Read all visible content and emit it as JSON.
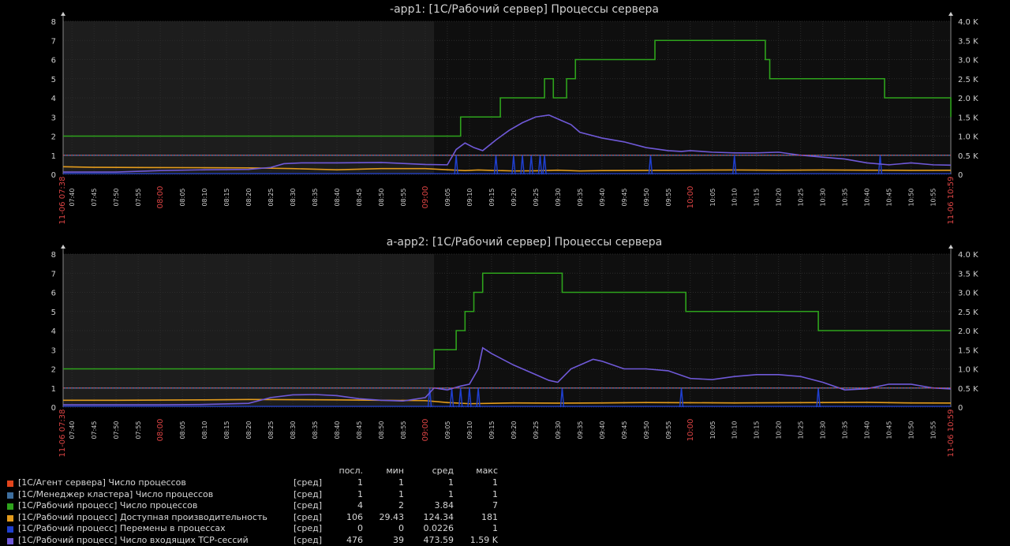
{
  "colors": {
    "bg": "#000000",
    "plot_bg": "#0f0f0f",
    "plot_dim": "#1d1d1d",
    "grid": "#2b2b2b",
    "text": "#cfcfcf",
    "red_text": "#d44",
    "trigger": "#d44"
  },
  "chart_data": [
    {
      "type": "line",
      "title": "-app1: [1С/Рабочий сервер] Процессы сервера",
      "x_start_label": "11-06 07:38",
      "x_end_label": "11-06 10:59",
      "x_ticks": [
        "07:40",
        "07:45",
        "07:50",
        "07:55",
        "08:00",
        "08:05",
        "08:10",
        "08:15",
        "08:20",
        "08:25",
        "08:30",
        "08:35",
        "08:40",
        "08:45",
        "08:50",
        "08:55",
        "09:00",
        "09:05",
        "09:10",
        "09:15",
        "09:20",
        "09:25",
        "09:30",
        "09:35",
        "09:40",
        "09:45",
        "09:50",
        "09:55",
        "10:00",
        "10:05",
        "10:10",
        "10:15",
        "10:20",
        "10:25",
        "10:30",
        "10:35",
        "10:40",
        "10:45",
        "10:50",
        "10:55"
      ],
      "x_ticks_red": [
        "08:00",
        "09:00",
        "10:00"
      ],
      "x_range_min": [
        458,
        659
      ],
      "dim_region_end_min": 542,
      "y_left": {
        "ticks": [
          "0",
          "1",
          "2",
          "3",
          "4",
          "5",
          "6",
          "7",
          "8"
        ],
        "ylim": [
          0,
          8
        ]
      },
      "y_right": {
        "ticks": [
          "0",
          "0.5 K",
          "1.0 K",
          "1.5 K",
          "2.0 K",
          "2.5 K",
          "3.0 K",
          "3.5 K",
          "4.0 K"
        ],
        "ylim": [
          0,
          4000
        ]
      },
      "trigger_line_left": 1,
      "series": [
        {
          "name": "[1С/Агент сервера] Число процессов",
          "color": "#e2441b",
          "axis": "left",
          "x": [
            458,
            659
          ],
          "y": [
            1,
            1
          ]
        },
        {
          "name": "[1С/Менеджер кластера] Число процессов",
          "color": "#3d6e9e",
          "axis": "left",
          "x": [
            458,
            659
          ],
          "y": [
            1,
            1
          ]
        },
        {
          "name": "[1С/Рабочий процесс] Число процессов",
          "color": "#2ea31c",
          "axis": "left",
          "step": true,
          "x": [
            458,
            547,
            548,
            556,
            557,
            558,
            559,
            563,
            564,
            566,
            567,
            568,
            569,
            570,
            572,
            573,
            574,
            591,
            592,
            617,
            618,
            643,
            644,
            659
          ],
          "y": [
            2,
            2,
            3,
            3,
            4,
            4,
            4,
            4,
            4,
            4,
            5,
            5,
            4,
            4,
            5,
            5,
            6,
            6,
            7,
            6,
            5,
            5,
            4,
            3
          ]
        },
        {
          "name": "[1С/Рабочий процесс] Доступная производительность",
          "color": "#e39b1c",
          "axis": "right",
          "x": [
            458,
            465,
            475,
            490,
            500,
            510,
            520,
            530,
            540,
            545,
            549,
            552,
            555,
            560,
            565,
            570,
            575,
            580,
            590,
            600,
            610,
            620,
            630,
            640,
            650,
            659
          ],
          "y": [
            200,
            185,
            180,
            175,
            170,
            150,
            120,
            150,
            150,
            120,
            100,
            115,
            105,
            90,
            95,
            110,
            90,
            100,
            105,
            110,
            115,
            110,
            115,
            110,
            105,
            106
          ]
        },
        {
          "name": "[1С/Рабочий процесс] Перемены в процессах",
          "color": "#1f3fcf",
          "axis": "left",
          "spikes": true,
          "x": [
            547,
            556,
            560,
            562,
            564,
            566,
            567,
            591,
            610,
            643
          ],
          "y": [
            1,
            1,
            1,
            1,
            1,
            1,
            1,
            1,
            1,
            1
          ]
        },
        {
          "name": "[1С/Рабочий процесс] Число входящих TCP-сессий",
          "color": "#6f59d8",
          "axis": "right",
          "x": [
            458,
            470,
            480,
            490,
            500,
            505,
            508,
            512,
            520,
            530,
            540,
            545,
            547,
            549,
            551,
            553,
            556,
            559,
            562,
            565,
            568,
            571,
            573,
            575,
            580,
            585,
            590,
            595,
            598,
            600,
            605,
            610,
            615,
            620,
            625,
            630,
            635,
            640,
            645,
            650,
            655,
            659
          ],
          "y": [
            60,
            60,
            100,
            120,
            130,
            180,
            280,
            300,
            300,
            310,
            260,
            250,
            650,
            820,
            700,
            620,
            900,
            1150,
            1350,
            1500,
            1550,
            1400,
            1300,
            1100,
            950,
            850,
            700,
            620,
            600,
            620,
            580,
            560,
            560,
            580,
            500,
            450,
            400,
            300,
            250,
            300,
            250,
            240
          ]
        }
      ]
    },
    {
      "type": "line",
      "title": "a-app2: [1С/Рабочий сервер] Процессы сервера",
      "x_start_label": "11-06 07:38",
      "x_end_label": "11-06 10:59",
      "x_ticks": [
        "07:40",
        "07:45",
        "07:50",
        "07:55",
        "08:00",
        "08:05",
        "08:10",
        "08:15",
        "08:20",
        "08:25",
        "08:30",
        "08:35",
        "08:40",
        "08:45",
        "08:50",
        "08:55",
        "09:00",
        "09:05",
        "09:10",
        "09:15",
        "09:20",
        "09:25",
        "09:30",
        "09:35",
        "09:40",
        "09:45",
        "09:50",
        "09:55",
        "10:00",
        "10:05",
        "10:10",
        "10:15",
        "10:20",
        "10:25",
        "10:30",
        "10:35",
        "10:40",
        "10:45",
        "10:50",
        "10:55"
      ],
      "x_ticks_red": [
        "08:00",
        "09:00",
        "10:00"
      ],
      "x_range_min": [
        458,
        659
      ],
      "dim_region_end_min": 542,
      "y_left": {
        "ticks": [
          "0",
          "1",
          "2",
          "3",
          "4",
          "5",
          "6",
          "7",
          "8"
        ],
        "ylim": [
          0,
          8
        ]
      },
      "y_right": {
        "ticks": [
          "0",
          "0.5 K",
          "1.0 K",
          "1.5 K",
          "2.0 K",
          "2.5 K",
          "3.0 K",
          "3.5 K",
          "4.0 K"
        ],
        "ylim": [
          0,
          4000
        ]
      },
      "trigger_line_left": 1,
      "series": [
        {
          "name": "[1С/Агент сервера] Число процессов",
          "color": "#e2441b",
          "axis": "left",
          "x": [
            458,
            659
          ],
          "y": [
            1,
            1
          ]
        },
        {
          "name": "[1С/Менеджер кластера] Число процессов",
          "color": "#3d6e9e",
          "axis": "left",
          "x": [
            458,
            659
          ],
          "y": [
            1,
            1
          ]
        },
        {
          "name": "[1С/Рабочий процесс] Число процессов",
          "color": "#2ea31c",
          "axis": "left",
          "step": true,
          "x": [
            458,
            541,
            542,
            546,
            547,
            548,
            549,
            550,
            551,
            552,
            553,
            570,
            571,
            598,
            599,
            628,
            629,
            659
          ],
          "y": [
            2,
            2,
            3,
            3,
            4,
            4,
            5,
            5,
            6,
            6,
            7,
            7,
            6,
            6,
            5,
            5,
            4,
            4
          ]
        },
        {
          "name": "[1С/Рабочий процесс] Доступная производительность",
          "color": "#e39b1c",
          "axis": "right",
          "x": [
            458,
            470,
            480,
            490,
            500,
            510,
            520,
            530,
            540,
            545,
            550,
            555,
            560,
            570,
            580,
            590,
            600,
            610,
            620,
            630,
            640,
            650,
            659
          ],
          "y": [
            180,
            180,
            185,
            190,
            200,
            195,
            190,
            180,
            170,
            120,
            90,
            100,
            110,
            105,
            110,
            120,
            115,
            110,
            115,
            120,
            125,
            110,
            106
          ]
        },
        {
          "name": "[1С/Рабочий процесс] Перемены в процессах",
          "color": "#1f3fcf",
          "axis": "left",
          "spikes": true,
          "x": [
            541,
            546,
            548,
            550,
            552,
            571,
            598,
            629
          ],
          "y": [
            1,
            1,
            1,
            1,
            1,
            1,
            1,
            1
          ]
        },
        {
          "name": "[1С/Рабочий процесс] Число входящих TCP-сессий",
          "color": "#6f59d8",
          "axis": "right",
          "x": [
            458,
            470,
            480,
            490,
            500,
            505,
            510,
            515,
            520,
            525,
            530,
            535,
            540,
            542,
            545,
            548,
            550,
            552,
            553,
            555,
            560,
            565,
            568,
            570,
            573,
            576,
            578,
            580,
            585,
            590,
            595,
            600,
            605,
            610,
            615,
            620,
            625,
            630,
            635,
            640,
            645,
            650,
            655,
            659
          ],
          "y": [
            60,
            60,
            60,
            70,
            100,
            250,
            320,
            330,
            300,
            220,
            180,
            160,
            250,
            500,
            450,
            550,
            600,
            1000,
            1550,
            1400,
            1100,
            850,
            700,
            650,
            1000,
            1150,
            1250,
            1200,
            1000,
            1000,
            950,
            750,
            720,
            800,
            850,
            850,
            800,
            650,
            450,
            480,
            600,
            600,
            500,
            476
          ]
        }
      ]
    }
  ],
  "legend": {
    "headers": [
      "посл.",
      "мин",
      "сред",
      "макс"
    ],
    "rows": [
      {
        "color": "#e2441b",
        "name": "[1С/Агент сервера] Число процессов",
        "fn": "[сред]",
        "last": "1",
        "min": "1",
        "avg": "1",
        "max": "1"
      },
      {
        "color": "#3d6e9e",
        "name": "[1С/Менеджер кластера] Число процессов",
        "fn": "[сред]",
        "last": "1",
        "min": "1",
        "avg": "1",
        "max": "1"
      },
      {
        "color": "#2ea31c",
        "name": "[1С/Рабочий процесс] Число процессов",
        "fn": "[сред]",
        "last": "4",
        "min": "2",
        "avg": "3.84",
        "max": "7"
      },
      {
        "color": "#e39b1c",
        "name": "[1С/Рабочий процесс] Доступная производительность",
        "fn": "[сред]",
        "last": "106",
        "min": "29.43",
        "avg": "124.34",
        "max": "181"
      },
      {
        "color": "#1f3fcf",
        "name": "[1С/Рабочий процесс] Перемены в процессах",
        "fn": "[сред]",
        "last": "0",
        "min": "0",
        "avg": "0.0226",
        "max": "1"
      },
      {
        "color": "#6f59d8",
        "name": "[1С/Рабочий процесс] Число входящих TCP-сессий",
        "fn": "[сред]",
        "last": "476",
        "min": "39",
        "avg": "473.59",
        "max": "1.59 K"
      }
    ]
  }
}
